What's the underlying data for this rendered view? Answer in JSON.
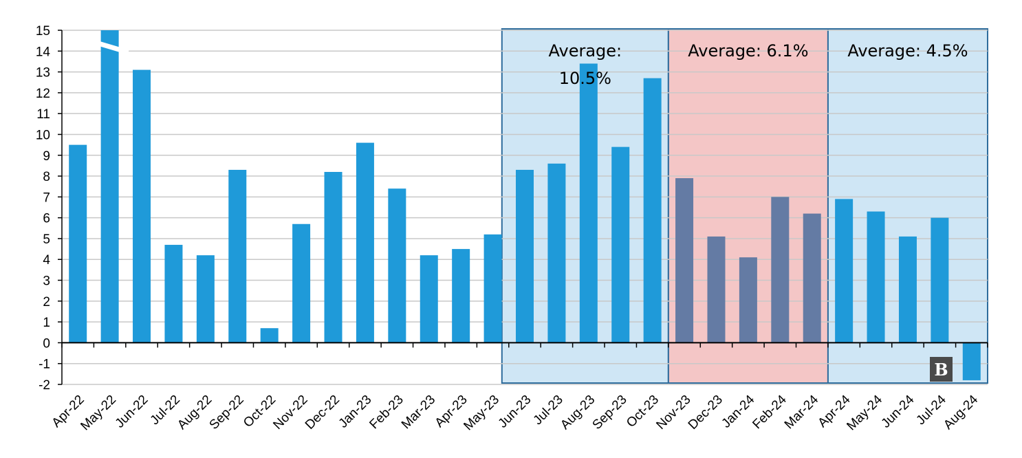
{
  "chart_data": {
    "type": "bar",
    "title": "",
    "xlabel": "",
    "ylabel": "",
    "ylim": [
      -2,
      15
    ],
    "yticks": [
      15,
      14,
      13,
      12,
      11,
      10,
      9,
      8,
      7,
      6,
      5,
      4,
      3,
      2,
      1,
      0,
      -1,
      -2
    ],
    "grid": true,
    "categories": [
      "Apr-22",
      "May-22",
      "Jun-22",
      "Jul-22",
      "Aug-22",
      "Sep-22",
      "Oct-22",
      "Nov-22",
      "Dec-22",
      "Jan-23",
      "Feb-23",
      "Mar-23",
      "Apr-23",
      "May-23",
      "Jun-23",
      "Jul-23",
      "Aug-23",
      "Sep-23",
      "Oct-23",
      "Nov-23",
      "Dec-23",
      "Jan-24",
      "Feb-24",
      "Mar-24",
      "Apr-24",
      "May-24",
      "Jun-24",
      "Jul-24",
      "Aug-24"
    ],
    "values": [
      9.5,
      15,
      13.1,
      4.7,
      4.2,
      8.3,
      0.7,
      5.7,
      8.2,
      9.6,
      7.4,
      4.2,
      4.5,
      5.2,
      8.3,
      8.6,
      13.4,
      9.4,
      12.7,
      7.9,
      5.1,
      4.1,
      7.0,
      6.2,
      6.9,
      6.3,
      5.1,
      6.0,
      -1.8
    ],
    "truncated": [
      "May-22"
    ],
    "colors": {
      "bar": "#1f9ad9",
      "bar_highlight": "#647ba4",
      "band_blue": "#cfe6f5",
      "band_red": "#f4c6c6",
      "band_border": "#2e6c9c",
      "grid": "#c8c8c8"
    },
    "regions": [
      {
        "label_lines": [
          "Average:",
          "10.5%"
        ],
        "from": "Jun-23",
        "to": "Oct-23",
        "fill": "blue"
      },
      {
        "label_lines": [
          "Average: 6.1%"
        ],
        "from": "Nov-23",
        "to": "Mar-24",
        "fill": "red"
      },
      {
        "label_lines": [
          "Average: 4.5%"
        ],
        "from": "Apr-24",
        "to": "Aug-24",
        "fill": "blue"
      }
    ],
    "highlight_categories": [
      "Nov-23",
      "Dec-23",
      "Jan-24",
      "Feb-24",
      "Mar-24"
    ]
  },
  "watermark": {
    "icon": "logo-icon",
    "text": "B"
  }
}
